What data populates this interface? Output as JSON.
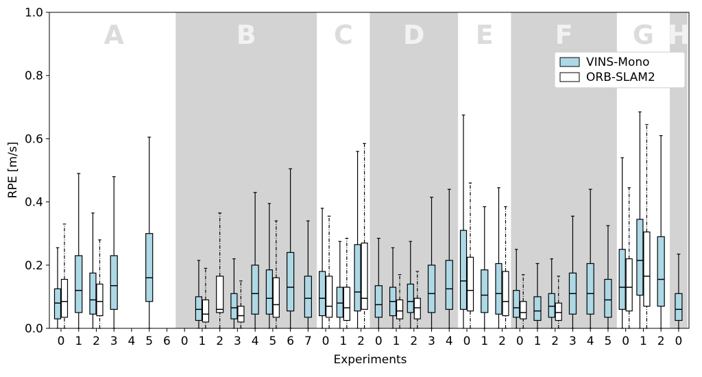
{
  "chart_data": {
    "type": "box",
    "xlabel": "Experiments",
    "ylabel": "RPE [m/s]",
    "ylim": [
      0,
      1
    ],
    "yticks": [
      {
        "value": 0,
        "label": "0.0"
      },
      0.2,
      0.4,
      0.6,
      0.8,
      {
        "value": 1,
        "label": "1.0"
      }
    ],
    "legend": "upper right",
    "groups": [
      {
        "name": "A",
        "shaded": false,
        "categories": [
          "0",
          "1",
          "2",
          "3",
          "4",
          "5",
          "6"
        ]
      },
      {
        "name": "B",
        "shaded": true,
        "categories": [
          "0",
          "1",
          "2",
          "3",
          "4",
          "5",
          "6",
          "7"
        ]
      },
      {
        "name": "C",
        "shaded": false,
        "categories": [
          "0",
          "1",
          "2"
        ]
      },
      {
        "name": "D",
        "shaded": true,
        "categories": [
          "0",
          "1",
          "2",
          "3",
          "4"
        ]
      },
      {
        "name": "E",
        "shaded": false,
        "categories": [
          "0",
          "1",
          "2"
        ]
      },
      {
        "name": "F",
        "shaded": true,
        "categories": [
          "0",
          "1",
          "2",
          "3",
          "4",
          "5"
        ]
      },
      {
        "name": "G",
        "shaded": false,
        "categories": [
          "0",
          "1",
          "2"
        ]
      },
      {
        "name": "H",
        "shaded": true,
        "categories": [
          "0"
        ]
      }
    ],
    "series": [
      {
        "name": "VINS-Mono",
        "color": "#add8e6",
        "whisker_style": "solid",
        "values": [
          {
            "low": 0,
            "q1": 0.03,
            "median": 0.08,
            "q3": 0.125,
            "high": 0.255
          },
          {
            "low": 0,
            "q1": 0.05,
            "median": 0.12,
            "q3": 0.23,
            "high": 0.49
          },
          {
            "low": 0,
            "q1": 0.045,
            "median": 0.09,
            "q3": 0.175,
            "high": 0.365
          },
          {
            "low": 0,
            "q1": 0.06,
            "median": 0.135,
            "q3": 0.23,
            "high": 0.48
          },
          null,
          {
            "low": 0,
            "q1": 0.085,
            "median": 0.16,
            "q3": 0.3,
            "high": 0.605
          },
          null,
          null,
          {
            "low": 0,
            "q1": 0.025,
            "median": 0.06,
            "q3": 0.1,
            "high": 0.215
          },
          null,
          {
            "low": 0,
            "q1": 0.03,
            "median": 0.065,
            "q3": 0.11,
            "high": 0.22
          },
          {
            "low": 0,
            "q1": 0.045,
            "median": 0.11,
            "q3": 0.2,
            "high": 0.43
          },
          {
            "low": 0,
            "q1": 0.045,
            "median": 0.095,
            "q3": 0.185,
            "high": 0.395
          },
          {
            "low": 0,
            "q1": 0.055,
            "median": 0.13,
            "q3": 0.24,
            "high": 0.505
          },
          {
            "low": 0,
            "q1": 0.035,
            "median": 0.095,
            "q3": 0.165,
            "high": 0.34
          },
          {
            "low": 0,
            "q1": 0.04,
            "median": 0.095,
            "q3": 0.18,
            "high": 0.38
          },
          {
            "low": 0,
            "q1": 0.035,
            "median": 0.08,
            "q3": 0.13,
            "high": 0.275
          },
          {
            "low": 0,
            "q1": 0.055,
            "median": 0.115,
            "q3": 0.265,
            "high": 0.56
          },
          {
            "low": 0,
            "q1": 0.035,
            "median": 0.075,
            "q3": 0.135,
            "high": 0.285
          },
          {
            "low": 0,
            "q1": 0.04,
            "median": 0.085,
            "q3": 0.13,
            "high": 0.255
          },
          {
            "low": 0,
            "q1": 0.05,
            "median": 0.085,
            "q3": 0.14,
            "high": 0.275
          },
          {
            "low": 0,
            "q1": 0.05,
            "median": 0.11,
            "q3": 0.2,
            "high": 0.415
          },
          {
            "low": 0,
            "q1": 0.06,
            "median": 0.125,
            "q3": 0.215,
            "high": 0.44
          },
          {
            "low": 0,
            "q1": 0.06,
            "median": 0.15,
            "q3": 0.31,
            "high": 0.675
          },
          {
            "low": 0,
            "q1": 0.05,
            "median": 0.105,
            "q3": 0.185,
            "high": 0.385
          },
          {
            "low": 0,
            "q1": 0.045,
            "median": 0.11,
            "q3": 0.205,
            "high": 0.445
          },
          {
            "low": 0,
            "q1": 0.035,
            "median": 0.065,
            "q3": 0.12,
            "high": 0.25
          },
          {
            "low": 0,
            "q1": 0.025,
            "median": 0.055,
            "q3": 0.1,
            "high": 0.205
          },
          {
            "low": 0,
            "q1": 0.035,
            "median": 0.07,
            "q3": 0.11,
            "high": 0.22
          },
          {
            "low": 0,
            "q1": 0.045,
            "median": 0.11,
            "q3": 0.175,
            "high": 0.355
          },
          {
            "low": 0,
            "q1": 0.045,
            "median": 0.11,
            "q3": 0.205,
            "high": 0.44
          },
          {
            "low": 0,
            "q1": 0.035,
            "median": 0.09,
            "q3": 0.155,
            "high": 0.325
          },
          {
            "low": 0,
            "q1": 0.06,
            "median": 0.13,
            "q3": 0.25,
            "high": 0.54
          },
          {
            "low": 0,
            "q1": 0.105,
            "median": 0.215,
            "q3": 0.345,
            "high": 0.685
          },
          {
            "low": 0,
            "q1": 0.07,
            "median": 0.155,
            "q3": 0.29,
            "high": 0.61
          },
          {
            "low": 0,
            "q1": 0.025,
            "median": 0.06,
            "q3": 0.11,
            "high": 0.235
          }
        ]
      },
      {
        "name": "ORB-SLAM2",
        "color": "#ffffff",
        "whisker_style": "dashdot",
        "values": [
          {
            "low": 0,
            "q1": 0.035,
            "median": 0.085,
            "q3": 0.155,
            "high": 0.33
          },
          null,
          {
            "low": 0,
            "q1": 0.04,
            "median": 0.085,
            "q3": 0.14,
            "high": 0.28
          },
          null,
          null,
          null,
          null,
          null,
          {
            "low": 0,
            "q1": 0.02,
            "median": 0.045,
            "q3": 0.09,
            "high": 0.19
          },
          {
            "low": 0,
            "q1": 0.05,
            "median": 0.06,
            "q3": 0.165,
            "high": 0.365
          },
          {
            "low": 0,
            "q1": 0.02,
            "median": 0.04,
            "q3": 0.07,
            "high": 0.15
          },
          null,
          {
            "low": 0,
            "q1": 0.035,
            "median": 0.075,
            "q3": 0.16,
            "high": 0.34
          },
          null,
          null,
          {
            "low": 0,
            "q1": 0.035,
            "median": 0.07,
            "q3": 0.165,
            "high": 0.355
          },
          {
            "low": 0,
            "q1": 0.025,
            "median": 0.065,
            "q3": 0.13,
            "high": 0.285
          },
          {
            "low": 0,
            "q1": 0.06,
            "median": 0.095,
            "q3": 0.27,
            "high": 0.585
          },
          null,
          {
            "low": 0,
            "q1": 0.03,
            "median": 0.055,
            "q3": 0.09,
            "high": 0.17
          },
          {
            "low": 0,
            "q1": 0.03,
            "median": 0.065,
            "q3": 0.095,
            "high": 0.18
          },
          null,
          null,
          {
            "low": 0,
            "q1": 0.055,
            "median": 0.12,
            "q3": 0.225,
            "high": 0.46
          },
          null,
          {
            "low": 0,
            "q1": 0.04,
            "median": 0.085,
            "q3": 0.18,
            "high": 0.385
          },
          {
            "low": 0,
            "q1": 0.03,
            "median": 0.05,
            "q3": 0.085,
            "high": 0.17
          },
          null,
          {
            "low": 0,
            "q1": 0.025,
            "median": 0.05,
            "q3": 0.08,
            "high": 0.165
          },
          null,
          null,
          null,
          {
            "low": 0,
            "q1": 0.055,
            "median": 0.13,
            "q3": 0.22,
            "high": 0.445
          },
          {
            "low": 0,
            "q1": 0.07,
            "median": 0.165,
            "q3": 0.305,
            "high": 0.645
          },
          null,
          null
        ]
      }
    ]
  }
}
